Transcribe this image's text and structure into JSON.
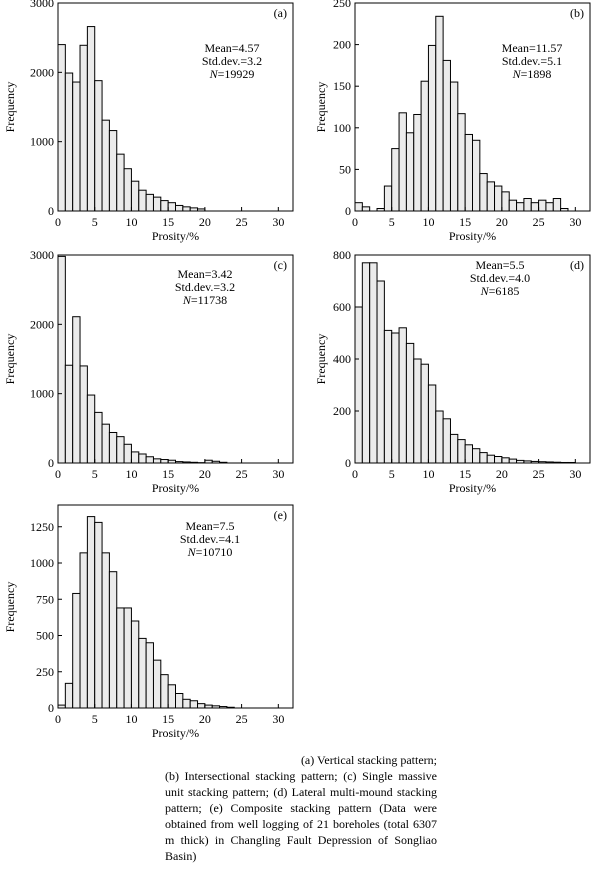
{
  "chart_data": [
    {
      "type": "bar",
      "panel_label": "(a)",
      "xlabel": "Prosity/%",
      "ylabel": "Frequency",
      "xlim": [
        0,
        32
      ],
      "ylim": [
        0,
        3000
      ],
      "xticks": [
        0,
        5,
        10,
        15,
        20,
        25,
        30
      ],
      "yticks": [
        0,
        1000,
        2000,
        3000
      ],
      "bin_width": 1,
      "bin_start": 0,
      "values": [
        2400,
        1990,
        1860,
        2390,
        2660,
        1880,
        1310,
        1160,
        820,
        610,
        430,
        300,
        240,
        200,
        150,
        120,
        80,
        60,
        45,
        30
      ],
      "stats": {
        "mean": "Mean=4.57",
        "std": "Std.dev.=3.2",
        "n_symbol": "N",
        "n_value": "=19929"
      }
    },
    {
      "type": "bar",
      "panel_label": "(b)",
      "xlabel": "Prosity/%",
      "ylabel": "Frequency",
      "xlim": [
        0,
        32
      ],
      "ylim": [
        0,
        250
      ],
      "xticks": [
        0,
        5,
        10,
        15,
        20,
        25,
        30
      ],
      "yticks": [
        0,
        50,
        100,
        150,
        200,
        250
      ],
      "bin_width": 1,
      "bin_start": 0,
      "values": [
        10,
        5,
        0,
        3,
        30,
        75,
        118,
        94,
        116,
        156,
        199,
        234,
        181,
        155,
        117,
        92,
        85,
        45,
        35,
        30,
        23,
        13,
        10,
        15,
        10,
        13,
        10,
        15,
        3,
        0
      ],
      "stats": {
        "mean": "Mean=11.57",
        "std": "Std.dev.=5.1",
        "n_symbol": "N",
        "n_value": "=1898"
      }
    },
    {
      "type": "bar",
      "panel_label": "(c)",
      "xlabel": "Prosity/%",
      "ylabel": "Frequency",
      "xlim": [
        0,
        32
      ],
      "ylim": [
        0,
        3000
      ],
      "xticks": [
        0,
        5,
        10,
        15,
        20,
        25,
        30
      ],
      "yticks": [
        0,
        1000,
        2000,
        3000
      ],
      "bin_width": 1,
      "bin_start": 0,
      "values": [
        2980,
        1410,
        2110,
        1400,
        980,
        730,
        560,
        440,
        380,
        270,
        160,
        130,
        90,
        60,
        50,
        40,
        20,
        15,
        10,
        5,
        40,
        25,
        10
      ],
      "stats": {
        "mean": "Mean=3.42",
        "std": "Std.dev.=3.2",
        "n_symbol": "N",
        "n_value": "=11738"
      }
    },
    {
      "type": "bar",
      "panel_label": "(d)",
      "xlabel": "Prosity/%",
      "ylabel": "Frequency",
      "xlim": [
        0,
        32
      ],
      "ylim": [
        0,
        800
      ],
      "xticks": [
        0,
        5,
        10,
        15,
        20,
        25,
        30
      ],
      "yticks": [
        0,
        200,
        400,
        600,
        800
      ],
      "bin_width": 1,
      "bin_start": 0,
      "values": [
        600,
        770,
        770,
        700,
        510,
        500,
        520,
        460,
        400,
        380,
        300,
        200,
        170,
        110,
        90,
        70,
        55,
        40,
        30,
        25,
        20,
        15,
        10,
        8,
        6,
        5,
        4,
        3,
        2,
        2
      ],
      "stats": {
        "mean": "Mean=5.5",
        "std": "Std.dev.=4.0",
        "n_symbol": "N",
        "n_value": "=6185"
      }
    },
    {
      "type": "bar",
      "panel_label": "(e)",
      "xlabel": "Prosity/%",
      "ylabel": "Frequency",
      "xlim": [
        0,
        32
      ],
      "ylim": [
        0,
        1400
      ],
      "xticks": [
        0,
        5,
        10,
        15,
        20,
        25,
        30
      ],
      "yticks": [
        0,
        250,
        500,
        750,
        1000,
        1250
      ],
      "bin_width": 1,
      "bin_start": 0,
      "values": [
        20,
        170,
        790,
        1070,
        1320,
        1280,
        1070,
        940,
        690,
        690,
        600,
        480,
        450,
        330,
        230,
        160,
        100,
        60,
        50,
        30,
        20,
        15,
        10,
        5
      ],
      "stats": {
        "mean": "Mean=7.5",
        "std": "Std.dev.=4.1",
        "n_symbol": "N",
        "n_value": "=10710"
      }
    }
  ],
  "caption": [
    "(a) Vertical stacking pattern;",
    "(b) Intersectional stacking pattern; (c) Single massive unit stacking pattern; (d) Lateral multi-mound stacking pattern; (e) Composite stacking pattern (Data were obtained from well logging of 21 boreholes (total 6307 m thick) in Changling Fault Depression of Songliao Basin)"
  ],
  "colors": {
    "bar_fill": "#ebebeb",
    "bar_stroke": "#000000",
    "axis": "#000000"
  }
}
